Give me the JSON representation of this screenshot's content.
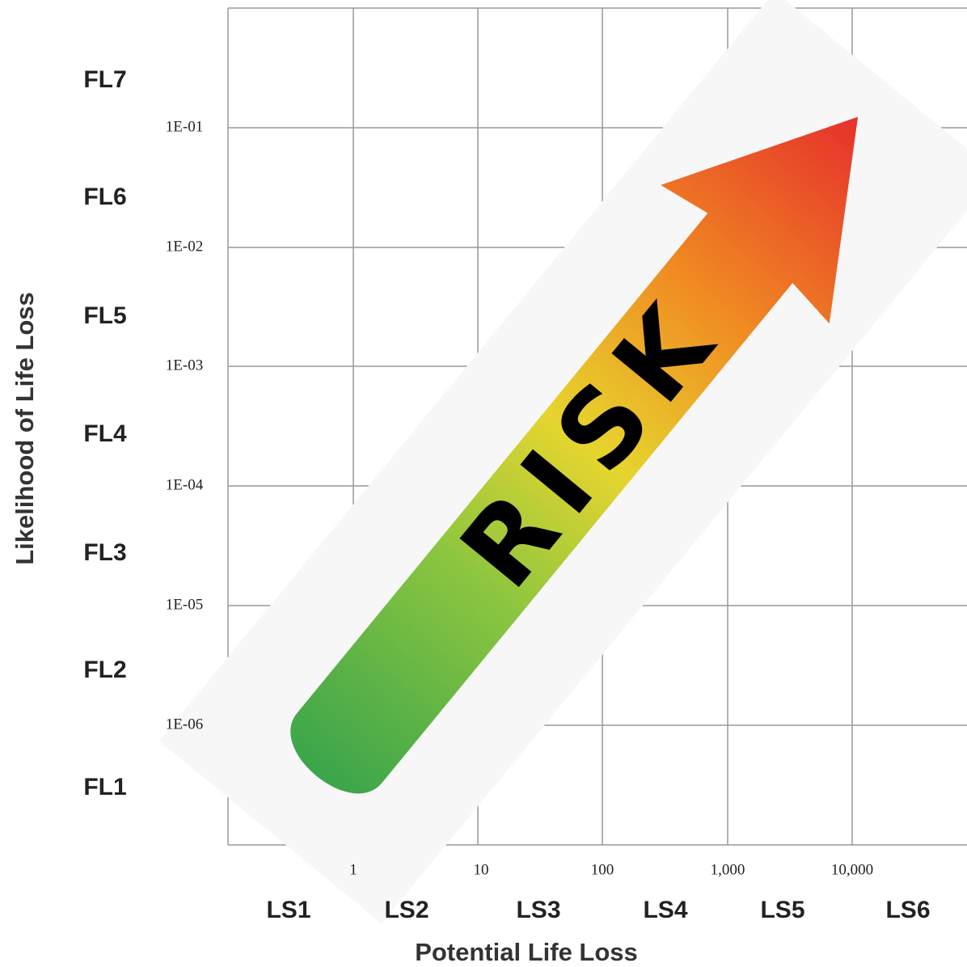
{
  "y_axis": {
    "title": "Likelihood of Life Loss",
    "ticks": [
      "1E-01",
      "1E-02",
      "1E-03",
      "1E-04",
      "1E-05",
      "1E-06"
    ],
    "bands": [
      "FL7",
      "FL6",
      "FL5",
      "FL4",
      "FL3",
      "FL2",
      "FL1"
    ]
  },
  "x_axis": {
    "title": "Potential Life Loss",
    "ticks": [
      "1",
      "10",
      "100",
      "1,000",
      "10,000"
    ],
    "bands": [
      "LS1",
      "LS2",
      "LS3",
      "LS4",
      "LS5",
      "LS6"
    ]
  },
  "arrow": {
    "label": "RISK"
  }
}
